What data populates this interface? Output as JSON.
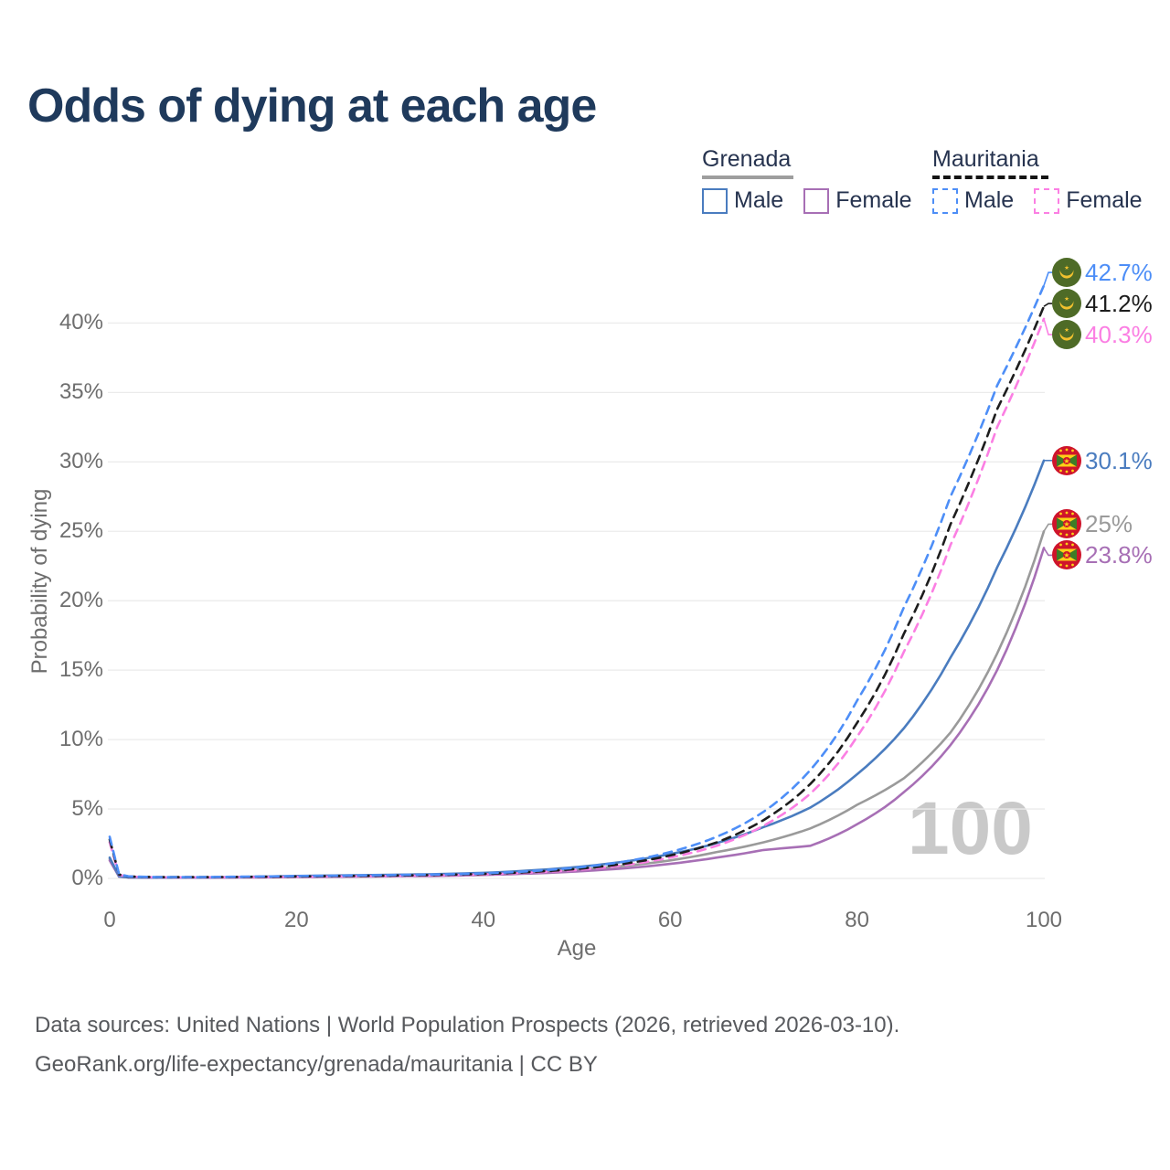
{
  "title": "Odds of dying at each age",
  "watermark": "100",
  "legend": {
    "groups": [
      {
        "label": "Grenada",
        "rule_style": "solid",
        "rule_color": "#9e9e9e",
        "items": [
          {
            "label": "Male",
            "series": 3
          },
          {
            "label": "Female",
            "series": 5
          }
        ]
      },
      {
        "label": "Mauritania",
        "rule_style": "dashed",
        "rule_color": "#141414",
        "items": [
          {
            "label": "Male",
            "series": 0
          },
          {
            "label": "Female",
            "series": 2
          }
        ]
      }
    ]
  },
  "axes": {
    "x_title": "Age",
    "y_title": "Probability of dying",
    "x_ticks": [
      0,
      20,
      40,
      60,
      80,
      100
    ],
    "y_ticks": [
      "0%",
      "5%",
      "10%",
      "15%",
      "20%",
      "25%",
      "30%",
      "35%",
      "40%"
    ]
  },
  "footer": {
    "line1": "Data sources: United Nations | World Population Prospects (2026, retrieved 2026-03-10).",
    "line2": "GeoRank.org/life-expectancy/grenada/mauritania | CC BY"
  },
  "chart_data": {
    "type": "line",
    "title": "Odds of dying at each age",
    "xlabel": "Age",
    "ylabel": "Probability of dying",
    "xlim": [
      0,
      100
    ],
    "ylim_percent": [
      0,
      44
    ],
    "grid": "horizontal",
    "legend_position": "top-right",
    "x": [
      0,
      1,
      2,
      5,
      10,
      15,
      20,
      25,
      30,
      35,
      40,
      45,
      50,
      55,
      60,
      65,
      70,
      75,
      80,
      85,
      90,
      95,
      100
    ],
    "series": [
      {
        "id": "mauritania-male",
        "name": "Mauritania Male",
        "country": "Mauritania",
        "sex": "Male",
        "style": "dashed",
        "color": "#4d8ef7",
        "flag": "mauritania",
        "end_label": "42.7%",
        "values": [
          3.0,
          0.3,
          0.15,
          0.1,
          0.1,
          0.13,
          0.17,
          0.2,
          0.24,
          0.28,
          0.36,
          0.52,
          0.78,
          1.2,
          1.9,
          3.0,
          4.8,
          7.8,
          12.8,
          19.5,
          27.5,
          35.5,
          42.7
        ]
      },
      {
        "id": "mauritania",
        "name": "Mauritania (both sexes)",
        "country": "Mauritania",
        "sex": "All",
        "style": "dashed",
        "color": "#1d1d1d",
        "flag": "mauritania",
        "end_label": "41.2%",
        "values": [
          2.8,
          0.28,
          0.14,
          0.09,
          0.09,
          0.11,
          0.14,
          0.17,
          0.2,
          0.25,
          0.32,
          0.46,
          0.68,
          1.05,
          1.65,
          2.6,
          4.2,
          6.8,
          11.2,
          17.6,
          25.5,
          33.8,
          41.2
        ]
      },
      {
        "id": "mauritania-female",
        "name": "Mauritania Female",
        "country": "Mauritania",
        "sex": "Female",
        "style": "dashed",
        "color": "#fb7fe3",
        "flag": "mauritania",
        "end_label": "40.3%",
        "values": [
          2.6,
          0.26,
          0.13,
          0.08,
          0.08,
          0.1,
          0.12,
          0.15,
          0.18,
          0.22,
          0.29,
          0.42,
          0.6,
          0.95,
          1.5,
          2.35,
          3.8,
          6.1,
          10.2,
          16.3,
          24.0,
          32.5,
          40.3
        ]
      },
      {
        "id": "grenada-male",
        "name": "Grenada Male",
        "country": "Grenada",
        "sex": "Male",
        "style": "solid",
        "color": "#4a7cbf",
        "flag": "grenada",
        "end_label": "30.1%",
        "values": [
          1.5,
          0.15,
          0.08,
          0.06,
          0.07,
          0.12,
          0.18,
          0.22,
          0.26,
          0.31,
          0.4,
          0.57,
          0.82,
          1.2,
          1.75,
          2.55,
          3.7,
          5.1,
          7.5,
          10.8,
          15.9,
          22.4,
          30.1
        ]
      },
      {
        "id": "grenada",
        "name": "Grenada (both sexes)",
        "country": "Grenada",
        "sex": "All",
        "style": "solid",
        "color": "#9a9a9a",
        "flag": "grenada",
        "end_label": "25%",
        "values": [
          1.4,
          0.14,
          0.07,
          0.05,
          0.06,
          0.1,
          0.14,
          0.17,
          0.2,
          0.24,
          0.31,
          0.44,
          0.62,
          0.9,
          1.3,
          1.9,
          2.6,
          3.6,
          5.3,
          7.2,
          10.5,
          16.2,
          25.0
        ]
      },
      {
        "id": "grenada-female",
        "name": "Grenada Female",
        "country": "Grenada",
        "sex": "Female",
        "style": "solid",
        "color": "#a76fb5",
        "flag": "grenada",
        "end_label": "23.8%",
        "values": [
          1.3,
          0.13,
          0.07,
          0.05,
          0.05,
          0.07,
          0.1,
          0.12,
          0.15,
          0.18,
          0.25,
          0.35,
          0.5,
          0.72,
          1.05,
          1.5,
          2.05,
          2.35,
          3.9,
          6.2,
          9.6,
          15.0,
          23.8
        ]
      }
    ]
  }
}
